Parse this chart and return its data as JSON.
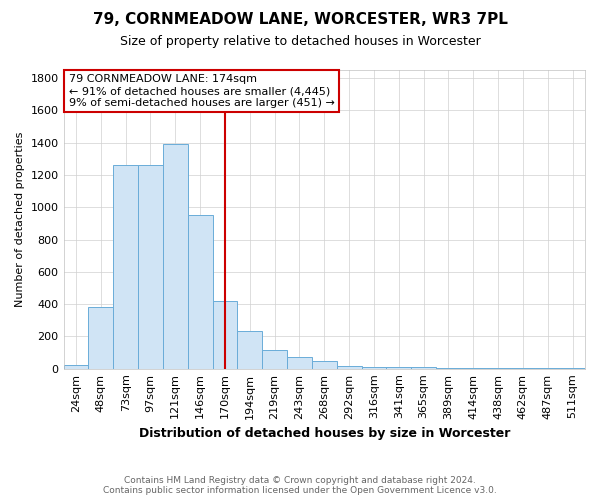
{
  "title": "79, CORNMEADOW LANE, WORCESTER, WR3 7PL",
  "subtitle": "Size of property relative to detached houses in Worcester",
  "xlabel": "Distribution of detached houses by size in Worcester",
  "ylabel": "Number of detached properties",
  "footer_line1": "Contains HM Land Registry data © Crown copyright and database right 2024.",
  "footer_line2": "Contains public sector information licensed under the Open Government Licence v3.0.",
  "bin_labels": [
    "24sqm",
    "48sqm",
    "73sqm",
    "97sqm",
    "121sqm",
    "146sqm",
    "170sqm",
    "194sqm",
    "219sqm",
    "243sqm",
    "268sqm",
    "292sqm",
    "316sqm",
    "341sqm",
    "365sqm",
    "389sqm",
    "414sqm",
    "438sqm",
    "462sqm",
    "487sqm",
    "511sqm"
  ],
  "bar_heights": [
    25,
    380,
    1260,
    1260,
    1390,
    950,
    420,
    235,
    115,
    70,
    50,
    15,
    10,
    8,
    8,
    5,
    3,
    2,
    2,
    2,
    2
  ],
  "bar_color": "#d0e4f5",
  "bar_edge_color": "#6aacd8",
  "property_line_color": "#cc0000",
  "property_line_bin_index": 6,
  "annotation_text_line1": "79 CORNMEADOW LANE: 174sqm",
  "annotation_text_line2": "← 91% of detached houses are smaller (4,445)",
  "annotation_text_line3": "9% of semi-detached houses are larger (451) →",
  "annotation_box_color": "#cc0000",
  "ylim": [
    0,
    1850
  ],
  "yticks": [
    0,
    200,
    400,
    600,
    800,
    1000,
    1200,
    1400,
    1600,
    1800
  ],
  "background_color": "#ffffff",
  "grid_color": "#d0d0d0",
  "title_fontsize": 11,
  "subtitle_fontsize": 9,
  "ylabel_fontsize": 8,
  "xlabel_fontsize": 9,
  "tick_fontsize": 8,
  "annot_fontsize": 8,
  "footer_fontsize": 6.5,
  "footer_color": "#666666"
}
